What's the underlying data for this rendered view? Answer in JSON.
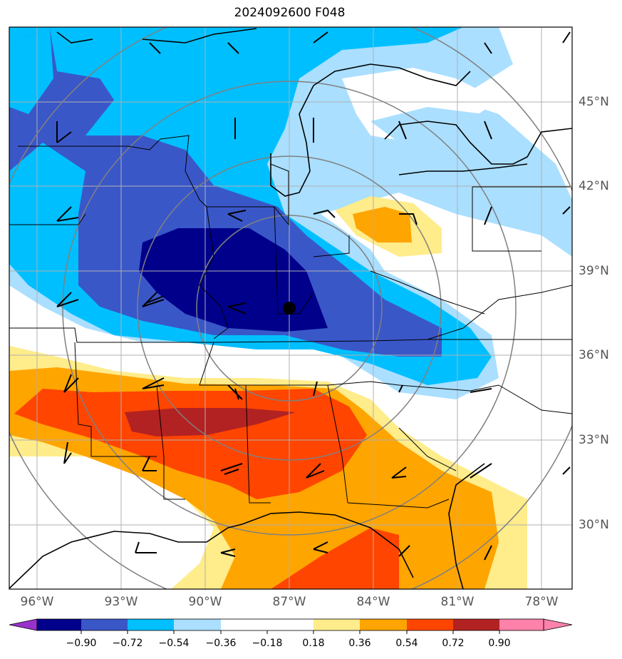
{
  "title": "2024092600 F048",
  "map": {
    "lon_ticks": [
      "96°W",
      "93°W",
      "90°W",
      "87°W",
      "84°W",
      "81°W",
      "78°W"
    ],
    "lat_ticks": [
      "45°N",
      "42°N",
      "39°N",
      "36°N",
      "33°N",
      "30°N"
    ],
    "region": "Central and eastern United States, Great Lakes to Gulf of Mexico",
    "center_marker": "black-dot"
  },
  "colorbar": {
    "ticks": [
      "−0.90",
      "−0.72",
      "−0.54",
      "−0.36",
      "−0.18",
      "0.18",
      "0.36",
      "0.54",
      "0.72",
      "0.90"
    ],
    "colors": [
      "#9932cc",
      "#00008b",
      "#3a57c8",
      "#00bfff",
      "#aadfff",
      "#ffffff",
      "#ffec8b",
      "#ffa500",
      "#ff4500",
      "#b22222",
      "#ff82ab"
    ],
    "extend": "both"
  }
}
